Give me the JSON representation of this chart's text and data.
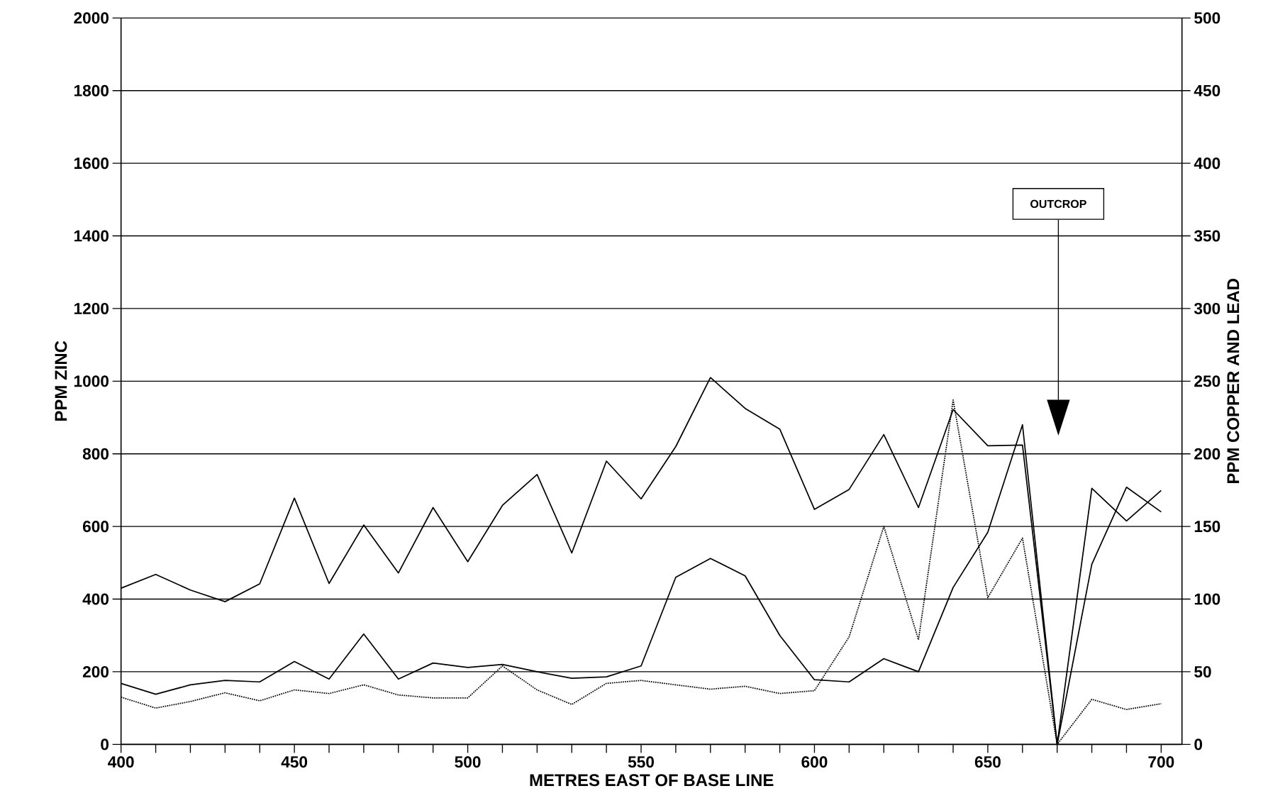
{
  "chart_data": {
    "type": "line",
    "xlabel": "METRES EAST OF BASE LINE",
    "ylabel": "PPM ZINC",
    "y2label": "PPM COPPER AND LEAD",
    "x": [
      400,
      410,
      420,
      430,
      440,
      450,
      460,
      470,
      480,
      490,
      500,
      510,
      520,
      530,
      540,
      550,
      560,
      570,
      580,
      590,
      600,
      610,
      620,
      630,
      640,
      650,
      660,
      670,
      680,
      690,
      700
    ],
    "series": [
      {
        "color": "#000000",
        "line_style": "solid",
        "values": [
          430,
          468,
          425,
          393,
          442,
          678,
          443,
          604,
          472,
          652,
          503,
          658,
          743,
          527,
          780,
          676,
          820,
          1010,
          925,
          868,
          647,
          702,
          853,
          652,
          922,
          822,
          824,
          0,
          705,
          615,
          699
        ]
      },
      {
        "color": "#000000",
        "line_style": "solid",
        "axis": "y2",
        "values": [
          42,
          34.5,
          41,
          44,
          43,
          57,
          45,
          76,
          45,
          56,
          53,
          55,
          50,
          45.5,
          46.5,
          54,
          115,
          128,
          116,
          75,
          44.5,
          43,
          59,
          50,
          108,
          146,
          220,
          0,
          124,
          177,
          160
        ]
      },
      {
        "color": "#000000",
        "line_style": "dotted",
        "axis": "y2",
        "values": [
          32.5,
          25,
          29.5,
          35.5,
          30,
          37.5,
          35,
          41,
          34,
          32,
          32,
          54,
          37.5,
          27.5,
          42,
          44,
          41,
          38,
          40,
          35,
          37,
          74,
          150,
          72,
          237,
          101,
          142,
          0,
          31,
          24,
          28
        ]
      }
    ],
    "xlim": [
      400,
      706
    ],
    "ylim": [
      0,
      2000
    ],
    "y2lim": [
      0,
      500
    ],
    "xticks": [
      400,
      {
        "value": 410,
        "label": null
      },
      {
        "value": 420,
        "label": null
      },
      {
        "value": 430,
        "label": null
      },
      {
        "value": 440,
        "label": null
      },
      450,
      {
        "value": 460,
        "label": null
      },
      {
        "value": 470,
        "label": null
      },
      {
        "value": 480,
        "label": null
      },
      {
        "value": 490,
        "label": null
      },
      500,
      {
        "value": 510,
        "label": null
      },
      {
        "value": 520,
        "label": null
      },
      {
        "value": 530,
        "label": null
      },
      {
        "value": 540,
        "label": null
      },
      550,
      {
        "value": 560,
        "label": null
      },
      {
        "value": 570,
        "label": null
      },
      {
        "value": 580,
        "label": null
      },
      {
        "value": 590,
        "label": null
      },
      600,
      {
        "value": 610,
        "label": null
      },
      {
        "value": 620,
        "label": null
      },
      {
        "value": 630,
        "label": null
      },
      {
        "value": 640,
        "label": null
      },
      650,
      {
        "value": 660,
        "label": null
      },
      {
        "value": 670,
        "label": null
      },
      {
        "value": 680,
        "label": null
      },
      {
        "value": 690,
        "label": null
      },
      700
    ],
    "yticks": [
      0,
      200,
      400,
      600,
      800,
      1000,
      1200,
      1400,
      1600,
      1800,
      2000
    ],
    "y2ticks": [
      0,
      50,
      100,
      150,
      200,
      250,
      300,
      350,
      400,
      450,
      500
    ],
    "grid": "y",
    "annotations": [
      "OUTCROP"
    ]
  }
}
